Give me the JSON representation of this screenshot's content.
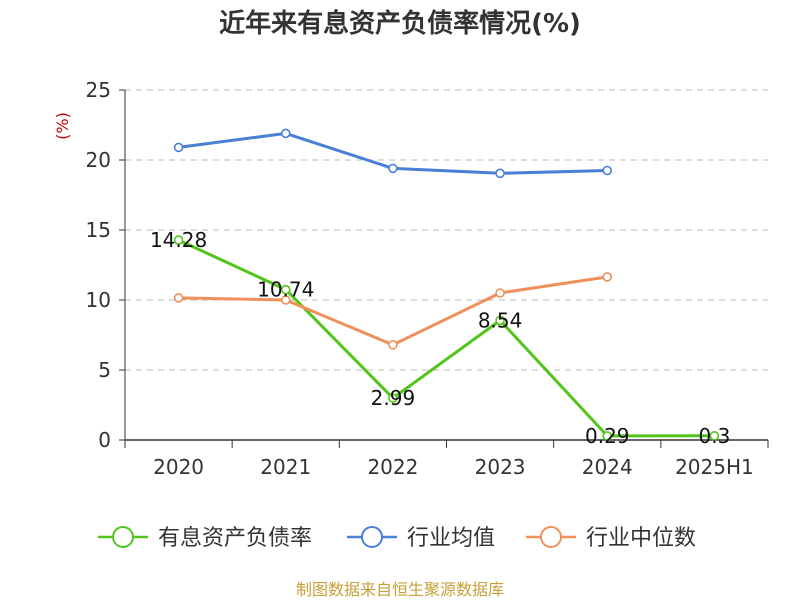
{
  "chart_data": {
    "type": "line",
    "title": "近年来有息资产负债率情况(%)",
    "unit_label": "(%)",
    "categories": [
      "2020",
      "2021",
      "2022",
      "2023",
      "2024",
      "2025H1"
    ],
    "ylim": [
      0,
      25
    ],
    "yticks": [
      0,
      5,
      10,
      15,
      20,
      25
    ],
    "grid": true,
    "legend_position": "bottom",
    "series": [
      {
        "name": "有息资产负债率",
        "color": "#52c41a",
        "values": [
          14.28,
          10.74,
          2.99,
          8.54,
          0.29,
          0.3
        ],
        "labels": [
          "14.28",
          "10.74",
          "2.99",
          "8.54",
          "0.29",
          "0.3"
        ]
      },
      {
        "name": "行业均值",
        "color": "#4a7fd6",
        "values": [
          20.9,
          21.9,
          19.4,
          19.05,
          19.25,
          null
        ]
      },
      {
        "name": "行业中位数",
        "color": "#f0905a",
        "values": [
          10.15,
          10.0,
          6.8,
          10.5,
          11.65,
          null
        ]
      }
    ]
  },
  "source_text": "制图数据来自恒生聚源数据库"
}
